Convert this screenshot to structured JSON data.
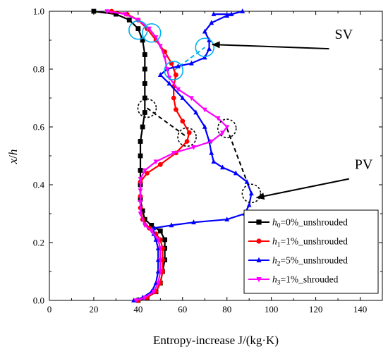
{
  "chart_data": {
    "type": "line",
    "xlabel": "Entropy-increase J/(kg·K)",
    "ylabel": "x/h",
    "xlim": [
      0,
      150
    ],
    "ylim": [
      0,
      1.0
    ],
    "xticks": [
      0,
      20,
      40,
      60,
      80,
      100,
      120,
      140
    ],
    "yticks": [
      0.0,
      0.2,
      0.4,
      0.6,
      0.8,
      1.0
    ],
    "legend_position": "bottom-right",
    "series": [
      {
        "name": "h0=0%_unshrouded",
        "legend": {
          "sym": "h",
          "sub": "0",
          "rest": "=0%_unshrouded"
        },
        "color": "#000000",
        "marker": "square",
        "points": [
          [
            40,
            0.0
          ],
          [
            44,
            0.01
          ],
          [
            48,
            0.03
          ],
          [
            50,
            0.06
          ],
          [
            51,
            0.1
          ],
          [
            52,
            0.14
          ],
          [
            52,
            0.18
          ],
          [
            52,
            0.21
          ],
          [
            50,
            0.24
          ],
          [
            46,
            0.26
          ],
          [
            43,
            0.28
          ],
          [
            42,
            0.31
          ],
          [
            41,
            0.35
          ],
          [
            41,
            0.4
          ],
          [
            41,
            0.45
          ],
          [
            41,
            0.5
          ],
          [
            41,
            0.55
          ],
          [
            42,
            0.6
          ],
          [
            43,
            0.65
          ],
          [
            43,
            0.7
          ],
          [
            43,
            0.75
          ],
          [
            43,
            0.8
          ],
          [
            43,
            0.85
          ],
          [
            42,
            0.9
          ],
          [
            40,
            0.94
          ],
          [
            36,
            0.97
          ],
          [
            30,
            0.99
          ],
          [
            20,
            1.0
          ]
        ]
      },
      {
        "name": "h1=1%_unshrouded",
        "legend": {
          "sym": "h",
          "sub": "1",
          "rest": "=1%_unshrouded"
        },
        "color": "#ff0000",
        "marker": "circle",
        "points": [
          [
            40,
            0.0
          ],
          [
            44,
            0.01
          ],
          [
            48,
            0.03
          ],
          [
            50,
            0.06
          ],
          [
            51,
            0.1
          ],
          [
            51,
            0.14
          ],
          [
            51,
            0.18
          ],
          [
            50,
            0.21
          ],
          [
            48,
            0.23
          ],
          [
            45,
            0.25
          ],
          [
            42,
            0.28
          ],
          [
            41,
            0.32
          ],
          [
            41,
            0.36
          ],
          [
            41,
            0.41
          ],
          [
            44,
            0.44
          ],
          [
            50,
            0.47
          ],
          [
            57,
            0.51
          ],
          [
            62,
            0.55
          ],
          [
            63,
            0.58
          ],
          [
            60,
            0.62
          ],
          [
            57,
            0.66
          ],
          [
            56,
            0.7
          ],
          [
            56,
            0.74
          ],
          [
            57,
            0.78
          ],
          [
            55,
            0.82
          ],
          [
            52,
            0.86
          ],
          [
            48,
            0.9
          ],
          [
            44,
            0.94
          ],
          [
            40,
            0.97
          ],
          [
            35,
            0.99
          ],
          [
            28,
            1.0
          ]
        ]
      },
      {
        "name": "h2=5%_unshrouded",
        "legend": {
          "sym": "h",
          "sub": "2",
          "rest": "=5%_unshrouded"
        },
        "color": "#0000ff",
        "marker": "triangle-up",
        "points": [
          [
            38,
            0.0
          ],
          [
            42,
            0.01
          ],
          [
            46,
            0.03
          ],
          [
            48,
            0.06
          ],
          [
            49,
            0.1
          ],
          [
            49,
            0.14
          ],
          [
            49,
            0.18
          ],
          [
            48,
            0.21
          ],
          [
            47,
            0.23
          ],
          [
            47,
            0.25
          ],
          [
            55,
            0.26
          ],
          [
            65,
            0.27
          ],
          [
            80,
            0.28
          ],
          [
            88,
            0.3
          ],
          [
            90,
            0.33
          ],
          [
            91,
            0.37
          ],
          [
            89,
            0.41
          ],
          [
            84,
            0.44
          ],
          [
            78,
            0.46
          ],
          [
            74,
            0.48
          ],
          [
            73,
            0.51
          ],
          [
            72,
            0.55
          ],
          [
            70,
            0.6
          ],
          [
            66,
            0.65
          ],
          [
            60,
            0.7
          ],
          [
            54,
            0.75
          ],
          [
            50,
            0.78
          ],
          [
            53,
            0.8
          ],
          [
            58,
            0.81
          ],
          [
            64,
            0.82
          ],
          [
            70,
            0.84
          ],
          [
            72,
            0.87
          ],
          [
            72,
            0.9
          ],
          [
            70,
            0.93
          ],
          [
            73,
            0.96
          ],
          [
            80,
            0.985
          ],
          [
            87,
            1.0
          ],
          [
            82,
            0.99
          ],
          [
            74,
            0.99
          ]
        ]
      },
      {
        "name": "h3=1%_shrouded",
        "legend": {
          "sym": "h",
          "sub": "3",
          "rest": "=1%_shrouded"
        },
        "color": "#ff00ff",
        "marker": "triangle-down",
        "points": [
          [
            39,
            0.0
          ],
          [
            43,
            0.01
          ],
          [
            47,
            0.03
          ],
          [
            49,
            0.06
          ],
          [
            50,
            0.1
          ],
          [
            50,
            0.14
          ],
          [
            50,
            0.18
          ],
          [
            49,
            0.21
          ],
          [
            46,
            0.24
          ],
          [
            43,
            0.26
          ],
          [
            41,
            0.3
          ],
          [
            41,
            0.34
          ],
          [
            41,
            0.38
          ],
          [
            41,
            0.42
          ],
          [
            43,
            0.45
          ],
          [
            48,
            0.48
          ],
          [
            56,
            0.51
          ],
          [
            65,
            0.53
          ],
          [
            73,
            0.55
          ],
          [
            78,
            0.58
          ],
          [
            80,
            0.6
          ],
          [
            76,
            0.63
          ],
          [
            70,
            0.66
          ],
          [
            64,
            0.7
          ],
          [
            58,
            0.73
          ],
          [
            54,
            0.77
          ],
          [
            53,
            0.8
          ],
          [
            52,
            0.84
          ],
          [
            50,
            0.88
          ],
          [
            48,
            0.91
          ],
          [
            45,
            0.94
          ],
          [
            40,
            0.97
          ],
          [
            34,
            0.99
          ],
          [
            26,
            1.0
          ]
        ]
      }
    ],
    "annotations": [
      {
        "label": "SV",
        "from": [
          126,
          0.89
        ],
        "to": [
          72,
          0.89
        ]
      },
      {
        "label": "PV",
        "from": [
          135,
          0.44
        ],
        "to": [
          92,
          0.36
        ]
      }
    ],
    "circles": [
      {
        "x": 40,
        "y": 0.935,
        "color": "#00b0f0",
        "style": "solid"
      },
      {
        "x": 46,
        "y": 0.925,
        "color": "#00b0f0",
        "style": "solid"
      },
      {
        "x": 70,
        "y": 0.875,
        "color": "#00b0f0",
        "style": "solid"
      },
      {
        "x": 56,
        "y": 0.795,
        "color": "#00b0f0",
        "style": "solid"
      },
      {
        "x": 44,
        "y": 0.665,
        "color": "#000000",
        "style": "dashed"
      },
      {
        "x": 62,
        "y": 0.565,
        "color": "#000000",
        "style": "dashed"
      },
      {
        "x": 80,
        "y": 0.595,
        "color": "#000000",
        "style": "dashed"
      },
      {
        "x": 91,
        "y": 0.37,
        "color": "#000000",
        "style": "dashed"
      }
    ],
    "dashed_links": [
      {
        "color": "#00b0f0",
        "points": [
          [
            56,
            0.795
          ],
          [
            70,
            0.875
          ]
        ]
      },
      {
        "color": "#000000",
        "points": [
          [
            44,
            0.665
          ],
          [
            62,
            0.565
          ]
        ]
      },
      {
        "color": "#000000",
        "points": [
          [
            80,
            0.595
          ],
          [
            91,
            0.37
          ]
        ]
      }
    ]
  }
}
